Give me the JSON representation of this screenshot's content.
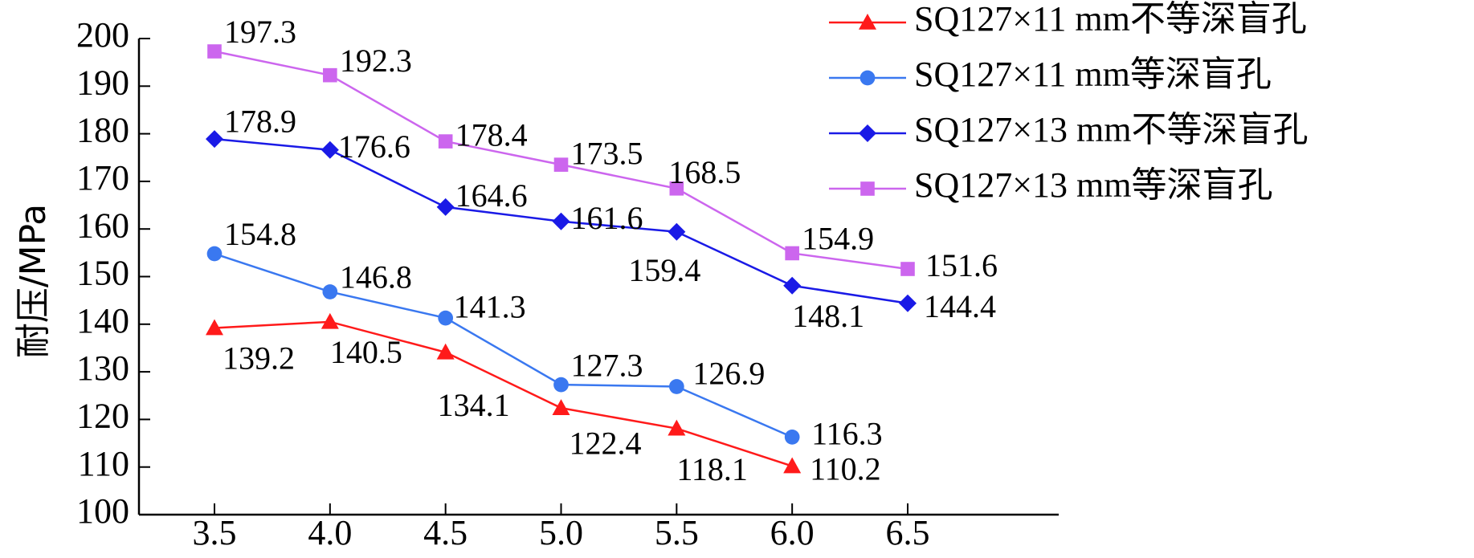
{
  "chart_data": {
    "type": "line",
    "ylabel": "耐压/MPa",
    "xlabel": "",
    "ylim": [
      100,
      200
    ],
    "xlim": [
      3.5,
      6.5
    ],
    "yticks": [
      "100",
      "110",
      "120",
      "130",
      "140",
      "150",
      "160",
      "170",
      "180",
      "190",
      "200"
    ],
    "xticks": [
      "3.5",
      "4.0",
      "4.5",
      "5.0",
      "5.5",
      "6.0",
      "6.5"
    ],
    "grid": false,
    "legend_position": "top-right",
    "series": [
      {
        "name": "SQ127×11 mm不等深盲孔",
        "color": "#ff1a1a",
        "marker": "triangle",
        "x": [
          3.5,
          4.0,
          4.5,
          5.0,
          5.5,
          6.0
        ],
        "values": [
          139.2,
          140.5,
          134.1,
          122.4,
          118.1,
          110.2
        ],
        "labels": [
          "139.2",
          "140.5",
          "134.1",
          "122.4",
          "118.1",
          "110.2"
        ]
      },
      {
        "name": "SQ127×11 mm等深盲孔",
        "color": "#3a78f0",
        "marker": "circle",
        "x": [
          3.5,
          4.0,
          4.5,
          5.0,
          5.5,
          6.0
        ],
        "values": [
          154.8,
          146.8,
          141.3,
          127.3,
          126.9,
          116.3
        ],
        "labels": [
          "154.8",
          "146.8",
          "141.3",
          "127.3",
          "126.9",
          "116.3"
        ]
      },
      {
        "name": "SQ127×13 mm不等深盲孔",
        "color": "#1a1ae6",
        "marker": "diamond",
        "x": [
          3.5,
          4.0,
          4.5,
          5.0,
          5.5,
          6.0,
          6.5
        ],
        "values": [
          178.9,
          176.6,
          164.6,
          161.6,
          159.4,
          148.1,
          144.4
        ],
        "labels": [
          "178.9",
          "176.6",
          "164.6",
          "161.6",
          "159.4",
          "148.1",
          "144.4"
        ]
      },
      {
        "name": "SQ127×13 mm等深盲孔",
        "color": "#cc66ee",
        "marker": "square",
        "x": [
          3.5,
          4.0,
          4.5,
          5.0,
          5.5,
          6.0,
          6.5
        ],
        "values": [
          197.3,
          192.3,
          178.4,
          173.5,
          168.5,
          154.9,
          151.6
        ],
        "labels": [
          "197.3",
          "192.3",
          "178.4",
          "173.5",
          "168.5",
          "154.9",
          "151.6"
        ]
      }
    ]
  }
}
